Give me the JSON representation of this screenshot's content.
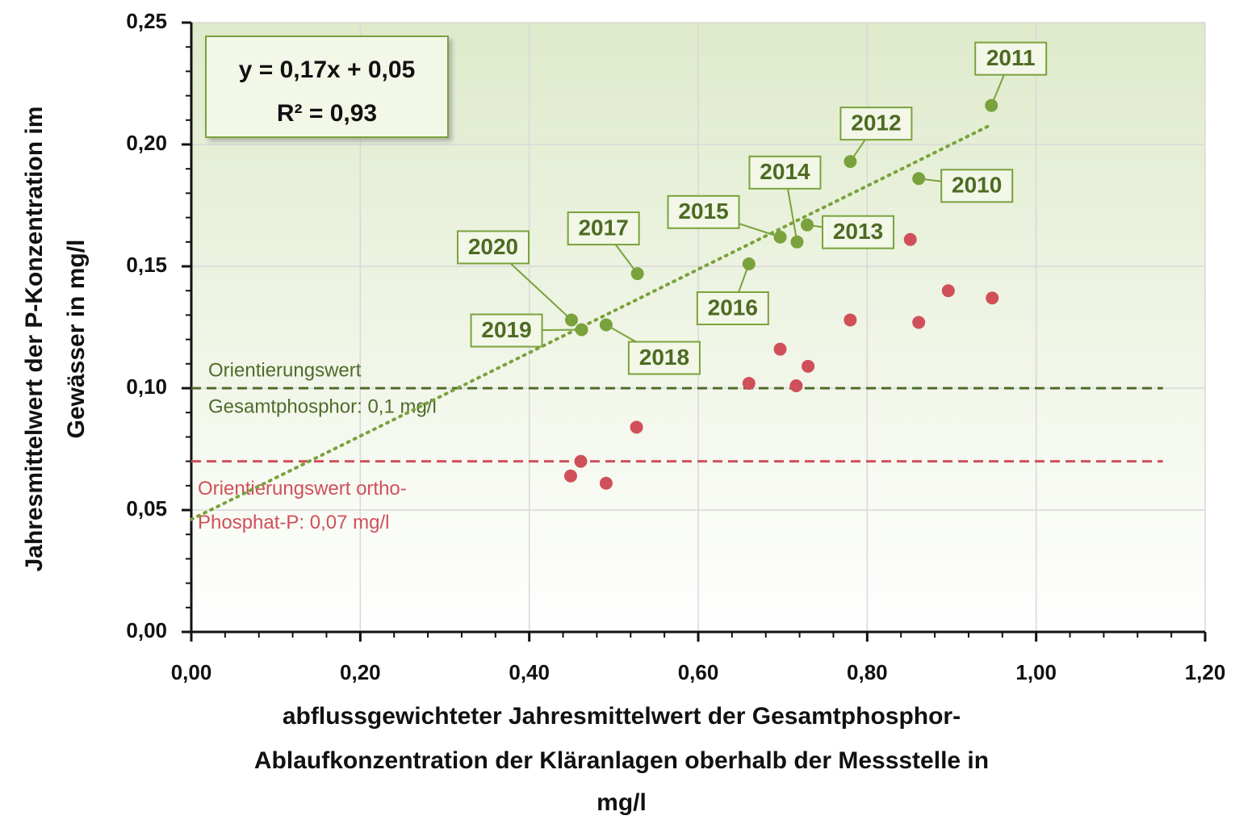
{
  "chart_data": {
    "type": "scatter",
    "x_label": [
      "abflussgewichteter Jahresmittelwert der Gesamtphosphor-",
      "Ablaufkonzentration der Kläranlagen oberhalb der Messstelle  in",
      "mg/l"
    ],
    "y_label": [
      "Jahresmittelwert der P-Konzentration im",
      "Gewässer in mg/l"
    ],
    "annotation": [
      "y = 0,17x + 0,05",
      "R² = 0,93"
    ],
    "xlim": [
      0,
      1.2
    ],
    "ylim": [
      0,
      0.25
    ],
    "xticks": [
      {
        "value": 0,
        "label": "0,00"
      },
      {
        "value": 0.2,
        "label": "0,20"
      },
      {
        "value": 0.4,
        "label": "0,40"
      },
      {
        "value": 0.6,
        "label": "0,60"
      },
      {
        "value": 0.8,
        "label": "0,80"
      },
      {
        "value": 1.0,
        "label": "1,00"
      },
      {
        "value": 1.2,
        "label": "1,20"
      }
    ],
    "yticks": [
      {
        "value": 0,
        "label": "0,00"
      },
      {
        "value": 0.05,
        "label": "0,05"
      },
      {
        "value": 0.1,
        "label": "0,10"
      },
      {
        "value": 0.15,
        "label": "0,15"
      },
      {
        "value": 0.2,
        "label": "0,20"
      },
      {
        "value": 0.25,
        "label": "0,25"
      }
    ],
    "xminor": 0.04,
    "yminor": 0.01,
    "grid": true,
    "trendline": true,
    "series": [
      {
        "color": "#7aa23c",
        "labels": [
          "2011",
          "2012",
          "2010",
          "2013",
          "2014",
          "2015",
          "2016",
          "2017",
          "2020",
          "2019",
          "2018"
        ],
        "x": [
          0.947,
          0.78,
          0.861,
          0.729,
          0.717,
          0.697,
          0.66,
          0.528,
          0.45,
          0.462,
          0.491
        ],
        "values": [
          0.216,
          0.193,
          0.186,
          0.167,
          0.16,
          0.162,
          0.151,
          0.147,
          0.128,
          0.124,
          0.126
        ]
      },
      {
        "color": "#d0505a",
        "x": [
          0.948,
          0.78,
          0.861,
          0.73,
          0.716,
          0.697,
          0.66,
          0.527,
          0.449,
          0.461,
          0.491,
          0.851,
          0.896
        ],
        "values": [
          0.137,
          0.128,
          0.127,
          0.109,
          0.101,
          0.116,
          0.102,
          0.084,
          0.064,
          0.07,
          0.061,
          0.161,
          0.14
        ]
      }
    ],
    "reference_lines": [
      {
        "value": 0.1,
        "xrange": [
          0,
          1.15
        ],
        "color": "#4f6b2a",
        "label": [
          "Orientierungswert",
          "Gesamtphosphor: 0,1 mg/l"
        ]
      },
      {
        "value": 0.07,
        "xrange": [
          0,
          1.15
        ],
        "color": "#d0505a",
        "label": [
          "Orientierungswert ortho-",
          "Phosphat-P: 0,07 mg/l"
        ]
      }
    ]
  }
}
